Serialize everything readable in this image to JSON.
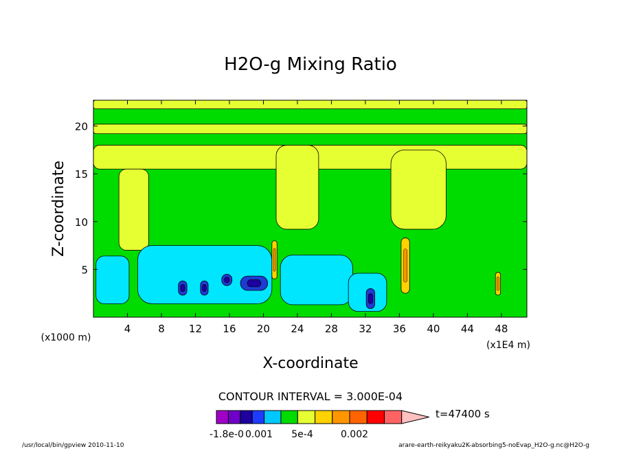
{
  "chart_data": {
    "type": "heatmap",
    "title": "H2O-g Mixing Ratio",
    "xlabel": "X-coordinate",
    "ylabel": "Z-coordinate",
    "x_unit": "(x1E4 m)",
    "y_unit": "(x1000 m)",
    "x_ticks": [
      4,
      8,
      12,
      16,
      20,
      24,
      28,
      32,
      36,
      40,
      44,
      48
    ],
    "y_ticks": [
      5,
      10,
      15,
      20
    ],
    "xlim": [
      0,
      51
    ],
    "ylim": [
      0,
      22.7
    ],
    "contour_interval_text": "CONTOUR INTERVAL = 3.000E-04",
    "time_label": "t=47400 s",
    "colorbar_labels": [
      "-1.8e-0",
      "0.001",
      "5e-4",
      "0.002"
    ],
    "colorbar_colors": [
      "#a000c8",
      "#6e00c8",
      "#1e00a0",
      "#1e3cff",
      "#00c8ff",
      "#00dc00",
      "#e6ff32",
      "#ffd200",
      "#ff9600",
      "#ff6400",
      "#ff0000",
      "#ff6464",
      "#ffc0c0"
    ],
    "levels": {
      "background": "#00dc00",
      "yellow_regions": [
        {
          "x": [
            0,
            51
          ],
          "y": [
            21.8,
            22.7
          ]
        },
        {
          "x": [
            0,
            51
          ],
          "y": [
            19.2,
            20.2
          ]
        },
        {
          "x": [
            0,
            51
          ],
          "y": [
            15.5,
            18.0
          ]
        },
        {
          "x": [
            21.5,
            26.5
          ],
          "y": [
            9.2,
            18.0
          ]
        },
        {
          "x": [
            3.0,
            6.5
          ],
          "y": [
            7.0,
            15.5
          ]
        },
        {
          "x": [
            35.0,
            41.5
          ],
          "y": [
            9.2,
            17.5
          ]
        }
      ],
      "cyan_regions": [
        {
          "x": [
            0.3,
            4.2
          ],
          "y": [
            1.4,
            6.4
          ]
        },
        {
          "x": [
            5.2,
            21.0
          ],
          "y": [
            1.4,
            7.5
          ]
        },
        {
          "x": [
            22.0,
            30.5
          ],
          "y": [
            1.3,
            6.5
          ]
        },
        {
          "x": [
            30.0,
            34.5
          ],
          "y": [
            0.6,
            4.6
          ]
        }
      ],
      "blue_regions": [
        {
          "x": [
            10.0,
            11.0
          ],
          "y": [
            2.3,
            3.8
          ]
        },
        {
          "x": [
            12.6,
            13.5
          ],
          "y": [
            2.3,
            3.8
          ]
        },
        {
          "x": [
            15.1,
            16.3
          ],
          "y": [
            3.3,
            4.5
          ]
        },
        {
          "x": [
            17.3,
            20.5
          ],
          "y": [
            2.8,
            4.3
          ]
        },
        {
          "x": [
            32.1,
            33.1
          ],
          "y": [
            0.9,
            3.0
          ]
        }
      ],
      "orange_regions": [
        {
          "x": [
            21.0,
            21.6
          ],
          "y": [
            4.0,
            8.0
          ]
        },
        {
          "x": [
            36.2,
            37.2
          ],
          "y": [
            2.5,
            8.3
          ]
        },
        {
          "x": [
            47.3,
            47.9
          ],
          "y": [
            2.3,
            4.7
          ]
        }
      ]
    }
  },
  "footer": {
    "program": "/usr/local/bin/gpview  2010-11-10",
    "file": "arare-earth-reikyaku2K-absorbing5-noEvap_H2O-g.nc@H2O-g"
  }
}
